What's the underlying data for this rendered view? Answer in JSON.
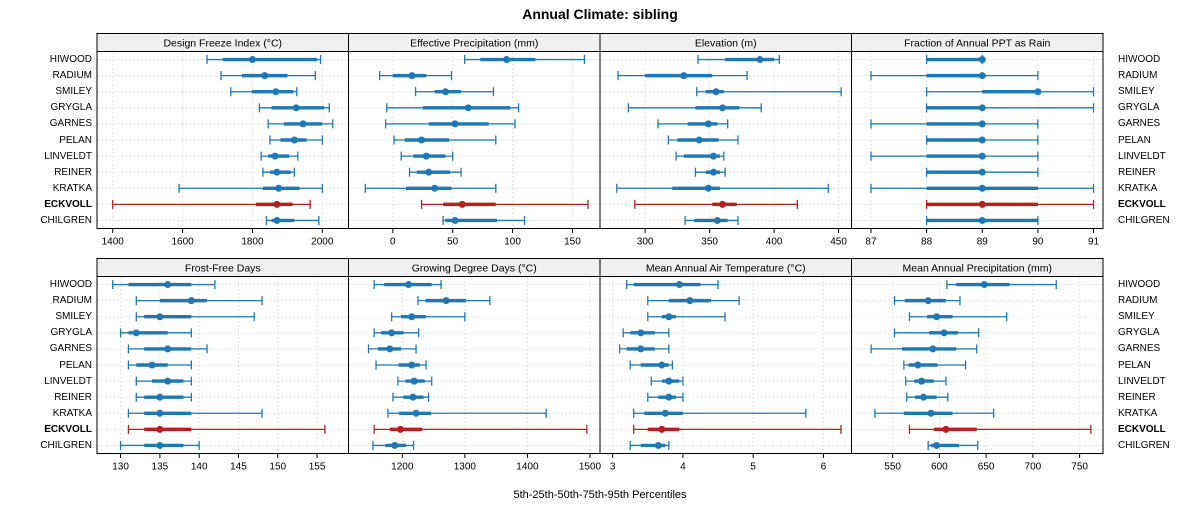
{
  "title": "Annual Climate: sibling",
  "caption": "5th-25th-50th-75th-95th Percentiles",
  "percentile_labels": [
    "5th",
    "25th",
    "50th",
    "75th",
    "95th"
  ],
  "stations": [
    "HIWOOD",
    "RADIUM",
    "SMILEY",
    "GRYGLA",
    "GARNES",
    "PELAN",
    "LINVELDT",
    "REINER",
    "KRATKA",
    "ECKVOLL",
    "CHILGREN"
  ],
  "highlight_station": "ECKVOLL",
  "colors": {
    "series_default": "#1f77b4",
    "series_highlight": "#b22222",
    "gridline": "#cccccc",
    "strip_background": "#f0f0f0",
    "panel_border": "#000000",
    "text": "#000000"
  },
  "chart_data": [
    {
      "type": "scatter",
      "subtype": "five-number-percentile-whisker",
      "title": "Design Freeze Index (°C)",
      "grid_row": 0,
      "grid_col": 0,
      "xlim": [
        1355,
        2075
      ],
      "ticks": [
        1400,
        1600,
        1800,
        2000
      ],
      "values": [
        [
          1670,
          1715,
          1800,
          1985,
          1995
        ],
        [
          1710,
          1770,
          1835,
          1900,
          1980
        ],
        [
          1738,
          1798,
          1867,
          1917,
          1927
        ],
        [
          1820,
          1855,
          1925,
          2005,
          2020
        ],
        [
          1845,
          1890,
          1945,
          2000,
          2030
        ],
        [
          1850,
          1880,
          1920,
          1955,
          2000
        ],
        [
          1825,
          1845,
          1865,
          1905,
          1930
        ],
        [
          1830,
          1850,
          1870,
          1910,
          1920
        ],
        [
          1590,
          1830,
          1875,
          1935,
          2000
        ],
        [
          1400,
          1810,
          1870,
          1915,
          1965
        ],
        [
          1840,
          1855,
          1870,
          1920,
          1990
        ]
      ]
    },
    {
      "type": "scatter",
      "subtype": "five-number-percentile-whisker",
      "title": "Effective Precipitation (mm)",
      "grid_row": 0,
      "grid_col": 1,
      "xlim": [
        -37,
        173
      ],
      "ticks": [
        0,
        50,
        100,
        150
      ],
      "values": [
        [
          60,
          73,
          95,
          119,
          160
        ],
        [
          -11,
          0,
          16,
          28,
          49
        ],
        [
          19,
          35,
          44,
          57,
          84
        ],
        [
          -5,
          25,
          63,
          98,
          105
        ],
        [
          -6,
          30,
          52,
          80,
          102
        ],
        [
          1,
          10,
          24,
          47,
          86
        ],
        [
          7,
          17,
          28,
          44,
          50
        ],
        [
          14,
          20,
          30,
          48,
          57
        ],
        [
          -23,
          11,
          35,
          49,
          86
        ],
        [
          24,
          42,
          58,
          86,
          163
        ],
        [
          42,
          44,
          52,
          87,
          110
        ]
      ]
    },
    {
      "type": "scatter",
      "subtype": "five-number-percentile-whisker",
      "title": "Elevation (m)",
      "grid_row": 0,
      "grid_col": 2,
      "xlim": [
        265,
        460
      ],
      "ticks": [
        300,
        350,
        400,
        450
      ],
      "values": [
        [
          341,
          362,
          389,
          400,
          404
        ],
        [
          279,
          300,
          330,
          352,
          379
        ],
        [
          340,
          347,
          355,
          361,
          452
        ],
        [
          287,
          339,
          360,
          373,
          390
        ],
        [
          310,
          333,
          349,
          356,
          364
        ],
        [
          318,
          325,
          342,
          357,
          372
        ],
        [
          324,
          330,
          353,
          358,
          361
        ],
        [
          339,
          347,
          353,
          358,
          362
        ],
        [
          278,
          321,
          349,
          358,
          442
        ],
        [
          292,
          352,
          360,
          371,
          418
        ],
        [
          331,
          338,
          356,
          364,
          372
        ]
      ]
    },
    {
      "type": "scatter",
      "subtype": "five-number-percentile-whisker",
      "title": "Fraction of Annual PPT as Rain",
      "grid_row": 0,
      "grid_col": 3,
      "xlim": [
        86.65,
        91.17
      ],
      "ticks": [
        87,
        88,
        89,
        90,
        91
      ],
      "values": [
        [
          88,
          88,
          89,
          89,
          89
        ],
        [
          87,
          88,
          89,
          89,
          90
        ],
        [
          88,
          89,
          90,
          90,
          91
        ],
        [
          88,
          88,
          89,
          89,
          91
        ],
        [
          87,
          88,
          89,
          89,
          90
        ],
        [
          88,
          88,
          89,
          89,
          90
        ],
        [
          87,
          88,
          89,
          89,
          90
        ],
        [
          88,
          88,
          89,
          89,
          90
        ],
        [
          87,
          88,
          89,
          90,
          91
        ],
        [
          88,
          88,
          89,
          90,
          91
        ],
        [
          88,
          88,
          89,
          90,
          90
        ]
      ]
    },
    {
      "type": "scatter",
      "subtype": "five-number-percentile-whisker",
      "title": "Frost-Free Days",
      "grid_row": 1,
      "grid_col": 0,
      "xlim": [
        127,
        159
      ],
      "ticks": [
        130,
        135,
        140,
        145,
        150,
        155
      ],
      "values": [
        [
          129,
          131,
          136,
          139,
          142
        ],
        [
          132,
          135,
          139,
          141,
          148
        ],
        [
          132,
          133,
          135,
          139,
          147
        ],
        [
          130,
          131,
          132,
          136,
          139
        ],
        [
          131,
          133,
          136,
          139,
          141
        ],
        [
          131,
          132,
          134,
          136,
          139
        ],
        [
          132,
          134,
          136,
          138,
          139
        ],
        [
          132,
          133,
          135,
          138,
          139
        ],
        [
          131,
          133,
          135,
          139,
          148
        ],
        [
          131,
          133,
          135,
          139,
          156
        ],
        [
          130,
          133,
          135,
          138,
          140
        ]
      ]
    },
    {
      "type": "scatter",
      "subtype": "five-number-percentile-whisker",
      "title": "Growing Degree Days (°C)",
      "grid_row": 1,
      "grid_col": 1,
      "xlim": [
        1114,
        1516
      ],
      "ticks": [
        1200,
        1300,
        1400,
        1500
      ],
      "values": [
        [
          1155,
          1171,
          1210,
          1247,
          1262
        ],
        [
          1225,
          1237,
          1270,
          1302,
          1340
        ],
        [
          1183,
          1198,
          1215,
          1238,
          1300
        ],
        [
          1155,
          1166,
          1183,
          1202,
          1226
        ],
        [
          1146,
          1161,
          1180,
          1198,
          1222
        ],
        [
          1158,
          1194,
          1215,
          1228,
          1238
        ],
        [
          1193,
          1205,
          1219,
          1236,
          1247
        ],
        [
          1185,
          1202,
          1217,
          1234,
          1242
        ],
        [
          1177,
          1195,
          1222,
          1246,
          1430
        ],
        [
          1155,
          1180,
          1197,
          1232,
          1495
        ],
        [
          1153,
          1173,
          1188,
          1206,
          1218
        ]
      ]
    },
    {
      "type": "scatter",
      "subtype": "five-number-percentile-whisker",
      "title": "Mean Annual Air Temperature (°C)",
      "grid_row": 1,
      "grid_col": 2,
      "xlim": [
        2.82,
        6.4
      ],
      "ticks": [
        3,
        4,
        5,
        6
      ],
      "values": [
        [
          3.2,
          3.3,
          3.95,
          4.25,
          4.5
        ],
        [
          3.5,
          3.8,
          4.1,
          4.4,
          4.8
        ],
        [
          3.5,
          3.7,
          3.8,
          3.9,
          4.6
        ],
        [
          3.15,
          3.25,
          3.4,
          3.6,
          3.8
        ],
        [
          3.1,
          3.2,
          3.4,
          3.6,
          3.8
        ],
        [
          3.25,
          3.4,
          3.7,
          3.8,
          3.85
        ],
        [
          3.55,
          3.7,
          3.8,
          3.95,
          4.0
        ],
        [
          3.5,
          3.65,
          3.8,
          3.9,
          4.0
        ],
        [
          3.3,
          3.45,
          3.75,
          4.0,
          5.75
        ],
        [
          3.3,
          3.5,
          3.7,
          3.95,
          6.25
        ],
        [
          3.25,
          3.4,
          3.65,
          3.75,
          3.8
        ]
      ]
    },
    {
      "type": "scatter",
      "subtype": "five-number-percentile-whisker",
      "title": "Mean Annual Precipitation (mm)",
      "grid_row": 1,
      "grid_col": 3,
      "xlim": [
        506,
        775
      ],
      "ticks": [
        550,
        600,
        650,
        700,
        750
      ],
      "values": [
        [
          608,
          618,
          648,
          675,
          725
        ],
        [
          552,
          563,
          588,
          607,
          622
        ],
        [
          568,
          587,
          597,
          614,
          672
        ],
        [
          552,
          589,
          605,
          620,
          642
        ],
        [
          527,
          560,
          593,
          618,
          640
        ],
        [
          562,
          567,
          577,
          598,
          628
        ],
        [
          564,
          573,
          581,
          594,
          607
        ],
        [
          565,
          574,
          583,
          597,
          609
        ],
        [
          531,
          562,
          591,
          614,
          658
        ],
        [
          568,
          594,
          607,
          640,
          762
        ],
        [
          588,
          591,
          597,
          621,
          641
        ]
      ]
    }
  ]
}
